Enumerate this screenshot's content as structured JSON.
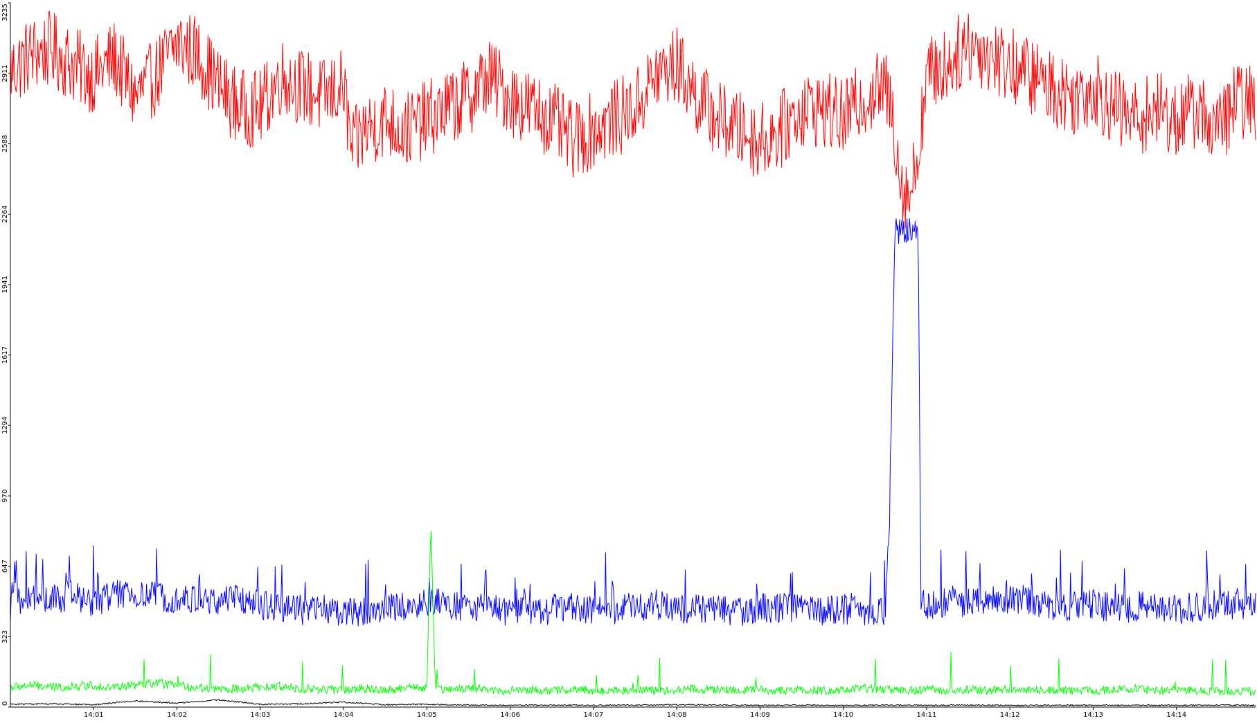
{
  "chart_data": {
    "type": "line",
    "title": "",
    "xlabel": "",
    "ylabel": "",
    "ylim": [
      0,
      3235
    ],
    "y_ticks": [
      0,
      323,
      647,
      970,
      1294,
      1617,
      1941,
      2264,
      2588,
      2911,
      3235
    ],
    "x_range_minutes": [
      840.0,
      854.95
    ],
    "x_ticks": [
      "14:01",
      "14:02",
      "14:03",
      "14:04",
      "14:05",
      "14:06",
      "14:07",
      "14:08",
      "14:09",
      "14:10",
      "14:11",
      "14:12",
      "14:13",
      "14:14"
    ],
    "grid": false,
    "legend": "none",
    "series": [
      {
        "color": "#ff0000",
        "x": [
          840.0,
          840.25,
          840.5,
          840.75,
          841.0,
          841.25,
          841.5,
          841.75,
          842.0,
          842.25,
          842.5,
          842.75,
          843.0,
          843.25,
          843.5,
          843.75,
          844.0,
          844.1,
          844.25,
          844.5,
          844.75,
          845.0,
          845.25,
          845.5,
          845.75,
          846.0,
          846.25,
          846.5,
          846.75,
          847.0,
          847.25,
          847.5,
          847.75,
          848.0,
          848.25,
          848.5,
          848.75,
          849.0,
          849.25,
          849.5,
          849.75,
          850.0,
          850.25,
          850.5,
          850.6,
          850.7,
          850.8,
          850.9,
          851.0,
          851.25,
          851.5,
          851.75,
          852.0,
          852.25,
          852.5,
          852.75,
          853.0,
          853.25,
          853.5,
          853.75,
          854.0,
          854.25,
          854.5,
          854.75,
          854.95
        ],
        "y": [
          2920,
          3000,
          3020,
          2950,
          2900,
          2980,
          2800,
          2900,
          3050,
          3000,
          2850,
          2750,
          2750,
          2900,
          2850,
          2800,
          2850,
          2550,
          2650,
          2700,
          2650,
          2700,
          2750,
          2800,
          2900,
          2800,
          2750,
          2700,
          2600,
          2650,
          2700,
          2750,
          2900,
          2950,
          2800,
          2700,
          2650,
          2600,
          2650,
          2750,
          2750,
          2700,
          2800,
          2850,
          2700,
          2400,
          2350,
          2550,
          2900,
          2950,
          3050,
          3000,
          2950,
          2900,
          2850,
          2800,
          2850,
          2750,
          2700,
          2750,
          2700,
          2750,
          2650,
          2800,
          2750
        ]
      },
      {
        "color": "#0000ff",
        "x": [
          840.0,
          840.05,
          840.1,
          840.25,
          840.5,
          840.75,
          841.0,
          841.25,
          841.5,
          841.75,
          842.0,
          842.25,
          842.5,
          842.75,
          843.0,
          843.25,
          843.5,
          843.75,
          844.0,
          844.25,
          844.5,
          844.75,
          845.0,
          845.25,
          845.5,
          845.75,
          846.0,
          846.25,
          846.5,
          846.75,
          847.0,
          847.25,
          847.5,
          847.75,
          848.0,
          848.25,
          848.5,
          848.75,
          849.0,
          849.25,
          849.5,
          849.75,
          850.0,
          850.25,
          850.5,
          850.55,
          850.62,
          850.7,
          850.8,
          850.9,
          850.93,
          851.0,
          851.25,
          851.5,
          851.75,
          852.0,
          852.25,
          852.5,
          852.75,
          853.0,
          853.25,
          853.5,
          853.75,
          854.0,
          854.25,
          854.5,
          854.75,
          854.95
        ],
        "y": [
          450,
          600,
          480,
          500,
          490,
          510,
          480,
          520,
          500,
          510,
          500,
          490,
          480,
          500,
          470,
          460,
          440,
          450,
          430,
          440,
          450,
          460,
          480,
          470,
          460,
          450,
          440,
          430,
          450,
          460,
          440,
          450,
          460,
          470,
          450,
          460,
          450,
          440,
          450,
          460,
          450,
          440,
          450,
          440,
          440,
          800,
          2200,
          2180,
          2200,
          2210,
          480,
          460,
          490,
          480,
          500,
          490,
          480,
          470,
          460,
          470,
          450,
          460,
          470,
          450,
          460,
          470,
          460,
          470
        ]
      },
      {
        "color": "#00ff00",
        "x": [
          840.0,
          840.25,
          840.5,
          840.75,
          841.0,
          841.25,
          841.5,
          841.75,
          842.0,
          842.25,
          842.5,
          842.75,
          843.0,
          843.25,
          843.5,
          843.75,
          844.0,
          844.25,
          844.5,
          844.75,
          845.0,
          845.05,
          845.1,
          845.25,
          845.5,
          845.75,
          846.0,
          846.25,
          846.5,
          846.75,
          847.0,
          847.25,
          847.5,
          847.75,
          848.0,
          848.25,
          848.5,
          848.75,
          849.0,
          849.25,
          849.5,
          849.75,
          850.0,
          850.25,
          850.5,
          850.75,
          851.0,
          851.25,
          851.5,
          851.75,
          852.0,
          852.25,
          852.5,
          852.75,
          853.0,
          853.25,
          853.5,
          853.75,
          854.0,
          854.25,
          854.5,
          854.75,
          854.95
        ],
        "y": [
          90,
          100,
          90,
          95,
          100,
          90,
          100,
          110,
          100,
          90,
          80,
          85,
          90,
          95,
          85,
          80,
          80,
          85,
          80,
          85,
          90,
          850,
          90,
          80,
          85,
          80,
          75,
          80,
          75,
          80,
          75,
          75,
          80,
          75,
          80,
          85,
          80,
          75,
          80,
          75,
          80,
          75,
          80,
          85,
          80,
          75,
          80,
          75,
          80,
          75,
          85,
          80,
          80,
          75,
          75,
          80,
          85,
          75,
          80,
          75,
          70,
          75,
          70
        ]
      },
      {
        "color": "#000000",
        "x": [
          840.0,
          840.5,
          841.0,
          841.5,
          842.0,
          842.5,
          843.0,
          843.5,
          844.0,
          844.5,
          845.0,
          845.5,
          846.0,
          846.5,
          847.0,
          847.5,
          848.0,
          848.5,
          849.0,
          849.5,
          850.0,
          850.5,
          851.0,
          851.5,
          852.0,
          852.5,
          853.0,
          853.5,
          854.0,
          854.5,
          854.95
        ],
        "y": [
          10,
          12,
          8,
          25,
          15,
          30,
          10,
          12,
          20,
          8,
          10,
          6,
          5,
          6,
          5,
          6,
          8,
          6,
          5,
          6,
          5,
          6,
          5,
          6,
          5,
          5,
          6,
          5,
          5,
          6,
          5
        ]
      }
    ]
  }
}
